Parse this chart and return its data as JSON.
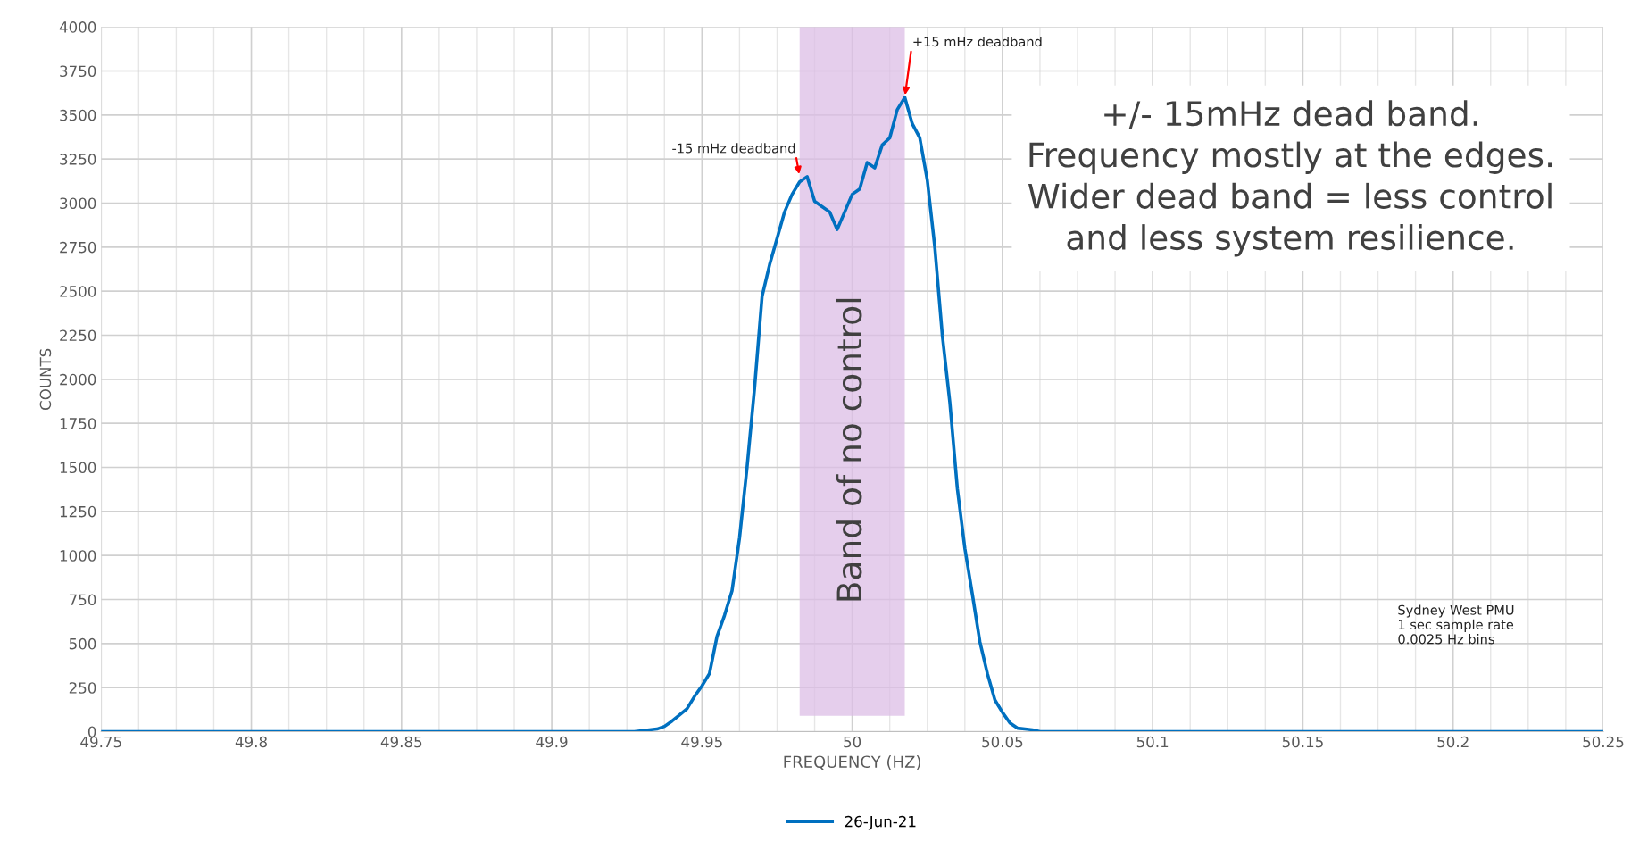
{
  "chart_data": {
    "type": "line",
    "xlabel": "FREQUENCY (HZ)",
    "ylabel": "COUNTS",
    "x": [
      49.75,
      49.9275,
      49.93,
      49.9325,
      49.935,
      49.9375,
      49.94,
      49.9425,
      49.945,
      49.9475,
      49.95,
      49.9525,
      49.955,
      49.9575,
      49.96,
      49.9625,
      49.965,
      49.9675,
      49.97,
      49.9725,
      49.975,
      49.9775,
      49.98,
      49.9825,
      49.985,
      49.9875,
      49.99,
      49.9925,
      49.995,
      49.9975,
      50,
      50.0025,
      50.005,
      50.0075,
      50.01,
      50.0125,
      50.015,
      50.0175,
      50.02,
      50.0225,
      50.025,
      50.0275,
      50.03,
      50.0325,
      50.035,
      50.0375,
      50.04,
      50.0425,
      50.045,
      50.0475,
      50.05,
      50.0525,
      50.055,
      50.0575,
      50.06,
      50.0625,
      50.25
    ],
    "series": [
      {
        "name": "26-Jun-21",
        "color": "#0070c0",
        "values": [
          0,
          0,
          5,
          10,
          15,
          30,
          60,
          95,
          130,
          200,
          260,
          330,
          540,
          660,
          800,
          1100,
          1500,
          1950,
          2470,
          2650,
          2800,
          2950,
          3050,
          3120,
          3150,
          3010,
          2980,
          2950,
          2850,
          2950,
          3050,
          3080,
          3230,
          3200,
          3330,
          3370,
          3530,
          3600,
          3450,
          3370,
          3130,
          2750,
          2250,
          1870,
          1380,
          1040,
          780,
          510,
          330,
          180,
          110,
          50,
          20,
          15,
          10,
          0,
          0
        ]
      }
    ],
    "xlim": [
      49.75,
      50.25
    ],
    "xticks": [
      49.75,
      49.8,
      49.85,
      49.9,
      49.95,
      50,
      50.05,
      50.1,
      50.15,
      50.2,
      50.25
    ],
    "ylim": [
      0,
      4000
    ],
    "yticks": [
      0,
      250,
      500,
      750,
      1000,
      1250,
      1500,
      1750,
      2000,
      2250,
      2500,
      2750,
      3000,
      3250,
      3500,
      3750,
      4000
    ],
    "grid": true,
    "legend": "bottom",
    "marker": "none",
    "line_style": "solid",
    "bands": [
      {
        "axis": "x",
        "from": 49.9825,
        "to": 50.0175,
        "label": "Band of no control",
        "color": "#dcbde6"
      }
    ],
    "annotations": [
      {
        "text": "-15 mHz deadband",
        "x": 49.9825,
        "y": 3150
      },
      {
        "text": "+15 mHz deadband",
        "x": 50.0175,
        "y": 3600
      },
      "+/- 15mHz dead band.\nFrequency mostly at the edges.\nWider dead band = less control\nand less system resilience.",
      "Sydney West PMU\n1 sec sample rate\n0.0025 Hz bins"
    ]
  }
}
